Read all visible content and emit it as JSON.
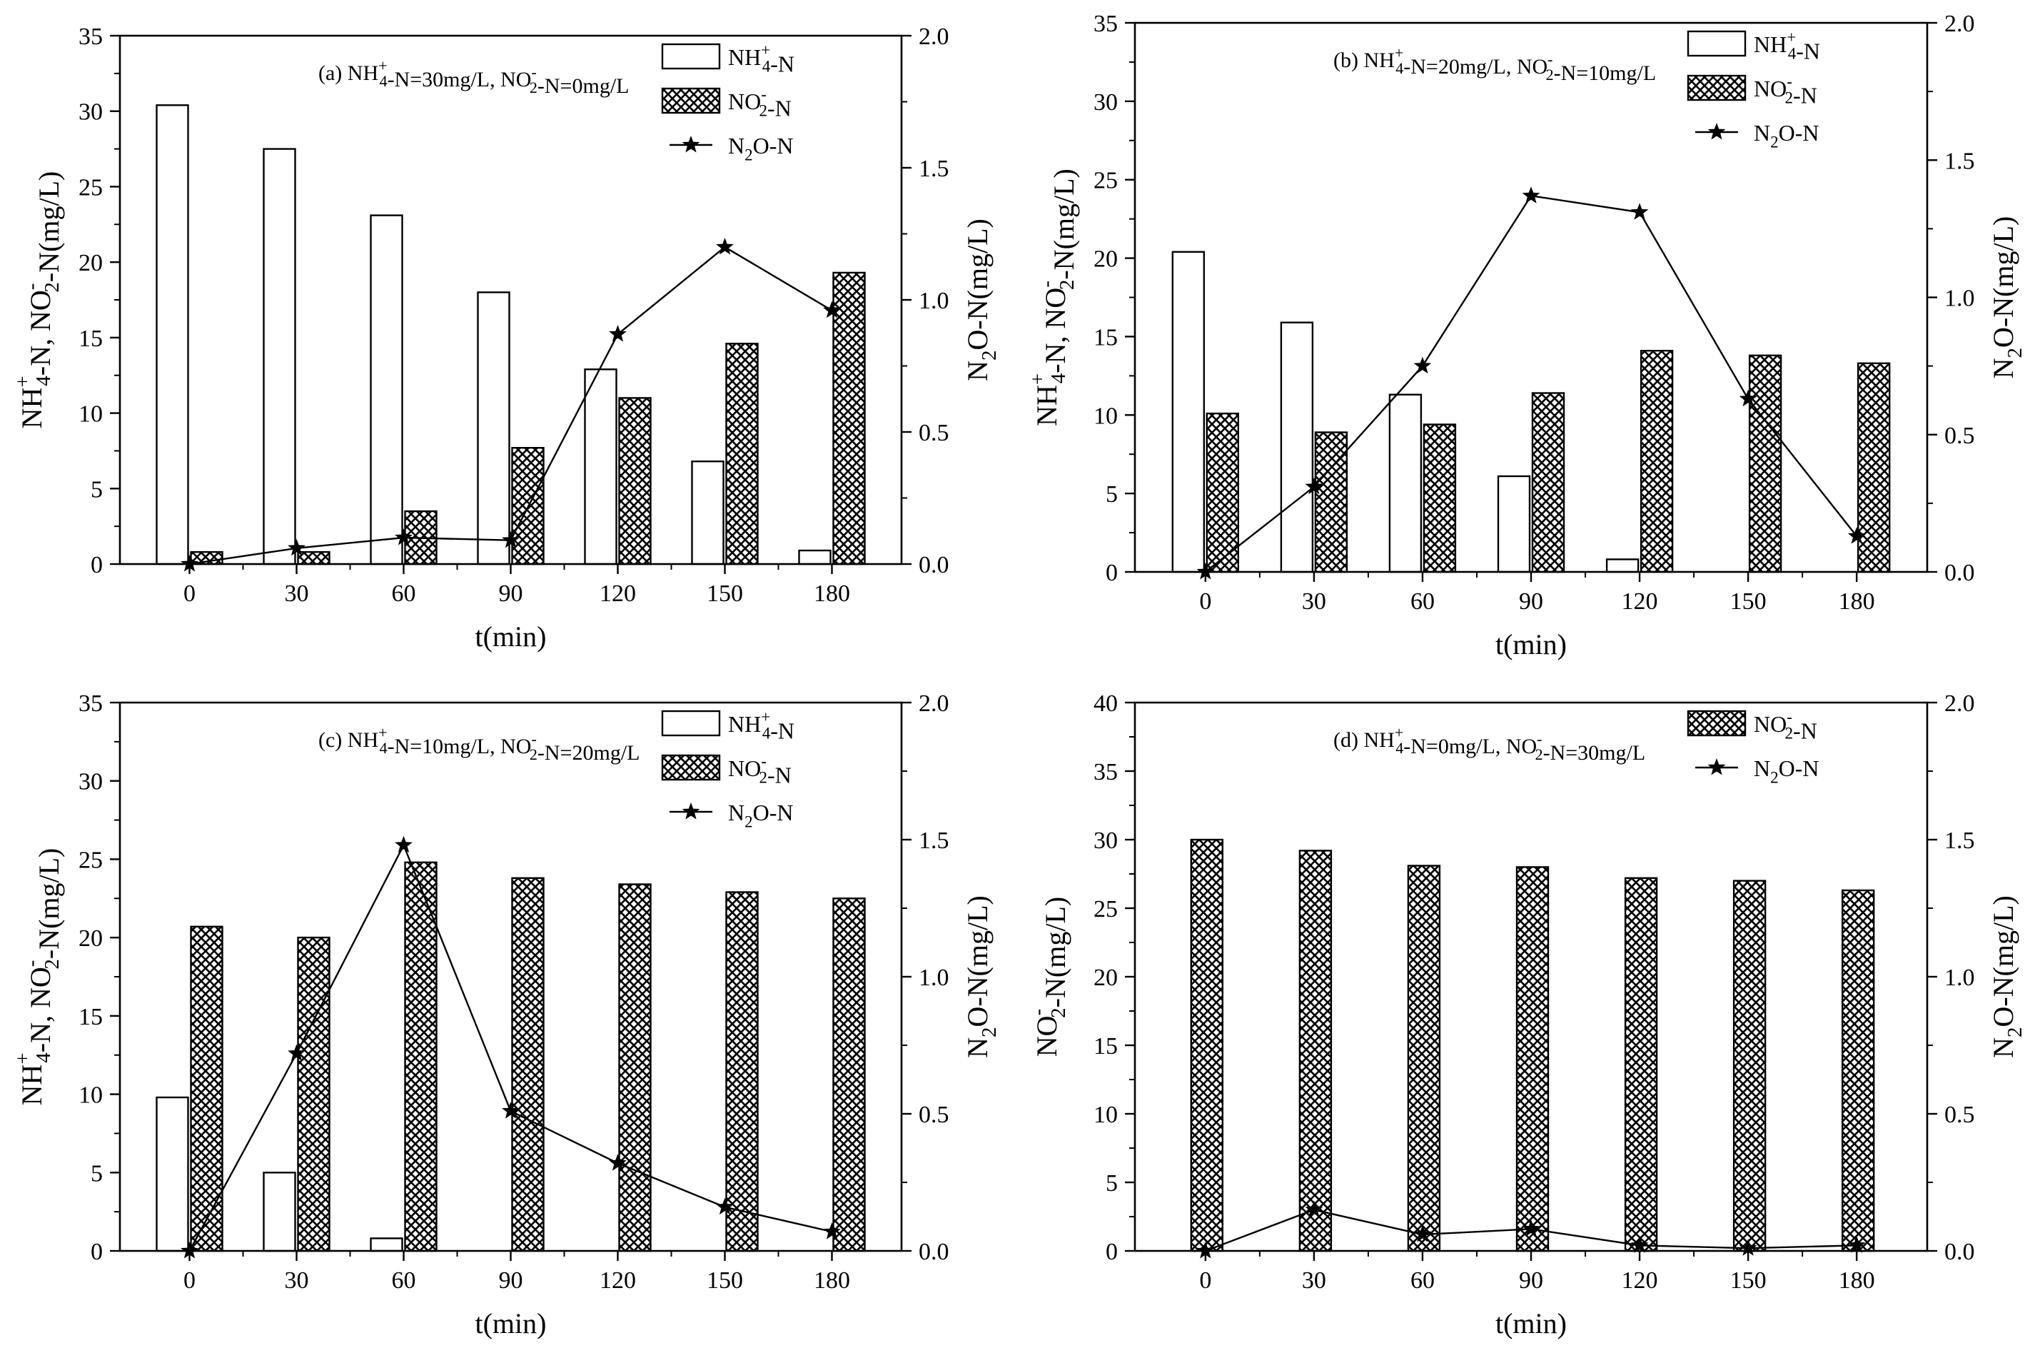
{
  "figure": {
    "x_title": "t(min)",
    "left_title_mixed": "NH4+-N, NO2--N(mg/L)",
    "left_title_nitrite": "NO2--N(mg/L)",
    "right_title": "N2O-N(mg/L)",
    "legend_ammonium": "NH4+-N",
    "legend_nitrite": "NO2--N",
    "legend_n2o": "N2O-N",
    "colors": {
      "axis": "#000000",
      "bar_fill": "#ffffff",
      "hatch": "#000000",
      "line": "#000000"
    }
  },
  "chart_data": [
    {
      "id": "a",
      "type": "bar",
      "title": "(a) NH4+-N=30mg/L, NO2--N=0mg/L",
      "xlabel": "t(min)",
      "ylabel": "NH4+-N, NO2--N(mg/L)",
      "y2label": "N2O-N(mg/L)",
      "categories": [
        0,
        30,
        60,
        90,
        120,
        150,
        180
      ],
      "ylim": [
        0,
        35
      ],
      "y2lim": [
        0,
        2.0
      ],
      "yticks": [
        0,
        5,
        10,
        15,
        20,
        25,
        30,
        35
      ],
      "y2ticks": [
        "0.0",
        "0.5",
        "1.0",
        "1.5",
        "2.0"
      ],
      "series": [
        {
          "name": "NH4+-N",
          "kind": "bar",
          "style": "open",
          "values": [
            30.4,
            27.5,
            23.1,
            18.0,
            12.9,
            6.8,
            0.9
          ]
        },
        {
          "name": "NO2--N",
          "kind": "bar",
          "style": "hatched",
          "values": [
            0.8,
            0.8,
            3.5,
            7.7,
            11.0,
            14.6,
            19.3
          ]
        },
        {
          "name": "N2O-N",
          "kind": "line",
          "axis": "right",
          "marker": "star",
          "values": [
            0.0,
            0.06,
            0.1,
            0.09,
            0.87,
            1.2,
            0.96
          ]
        }
      ]
    },
    {
      "id": "b",
      "type": "bar",
      "title": "(b) NH4+-N=20mg/L, NO2--N=10mg/L",
      "xlabel": "t(min)",
      "ylabel": "NH4+-N, NO2--N(mg/L)",
      "y2label": "N2O-N(mg/L)",
      "categories": [
        0,
        30,
        60,
        90,
        120,
        150,
        180
      ],
      "ylim": [
        0,
        35
      ],
      "y2lim": [
        0,
        2.0
      ],
      "yticks": [
        0,
        5,
        10,
        15,
        20,
        25,
        30,
        35
      ],
      "y2ticks": [
        "0.0",
        "0.5",
        "1.0",
        "1.5",
        "2.0"
      ],
      "series": [
        {
          "name": "NH4+-N",
          "kind": "bar",
          "style": "open",
          "values": [
            20.4,
            15.9,
            11.3,
            6.1,
            0.8,
            0,
            0
          ]
        },
        {
          "name": "NO2--N",
          "kind": "bar",
          "style": "hatched",
          "values": [
            10.1,
            8.9,
            9.4,
            11.4,
            14.1,
            13.8,
            13.3
          ]
        },
        {
          "name": "N2O-N",
          "kind": "line",
          "axis": "right",
          "marker": "star",
          "values": [
            0.0,
            0.31,
            0.75,
            1.37,
            1.31,
            0.63,
            0.13
          ]
        }
      ]
    },
    {
      "id": "c",
      "type": "bar",
      "title": "(c) NH4+-N=10mg/L, NO2--N=20mg/L",
      "xlabel": "t(min)",
      "ylabel": "NH4+-N, NO2--N(mg/L)",
      "y2label": "N2O-N(mg/L)",
      "categories": [
        0,
        30,
        60,
        90,
        120,
        150,
        180
      ],
      "ylim": [
        0,
        35
      ],
      "y2lim": [
        0,
        2.0
      ],
      "yticks": [
        0,
        5,
        10,
        15,
        20,
        25,
        30,
        35
      ],
      "y2ticks": [
        "0.0",
        "0.5",
        "1.0",
        "1.5",
        "2.0"
      ],
      "series": [
        {
          "name": "NH4+-N",
          "kind": "bar",
          "style": "open",
          "values": [
            9.8,
            5.0,
            0.8,
            0,
            0,
            0,
            0
          ]
        },
        {
          "name": "NO2--N",
          "kind": "bar",
          "style": "hatched",
          "values": [
            20.7,
            20.0,
            24.8,
            23.8,
            23.4,
            22.9,
            22.5
          ]
        },
        {
          "name": "N2O-N",
          "kind": "line",
          "axis": "right",
          "marker": "star",
          "values": [
            0.0,
            0.72,
            1.48,
            0.51,
            0.32,
            0.16,
            0.07
          ]
        }
      ]
    },
    {
      "id": "d",
      "type": "bar",
      "title": "(d) NH4+-N=0mg/L, NO2--N=30mg/L",
      "xlabel": "t(min)",
      "ylabel": "NO2--N(mg/L)",
      "y2label": "N2O-N(mg/L)",
      "categories": [
        0,
        30,
        60,
        90,
        120,
        150,
        180
      ],
      "ylim": [
        0,
        40
      ],
      "y2lim": [
        0,
        2.0
      ],
      "yticks": [
        0,
        5,
        10,
        15,
        20,
        25,
        30,
        35,
        40
      ],
      "y2ticks": [
        "0.0",
        "0.5",
        "1.0",
        "1.5",
        "2.0"
      ],
      "series": [
        {
          "name": "NO2--N",
          "kind": "bar",
          "style": "hatched",
          "values": [
            30.0,
            29.2,
            28.1,
            28.0,
            27.2,
            27.0,
            26.3
          ]
        },
        {
          "name": "N2O-N",
          "kind": "line",
          "axis": "right",
          "marker": "star",
          "values": [
            0.0,
            0.15,
            0.06,
            0.08,
            0.02,
            0.01,
            0.02
          ]
        }
      ]
    }
  ]
}
